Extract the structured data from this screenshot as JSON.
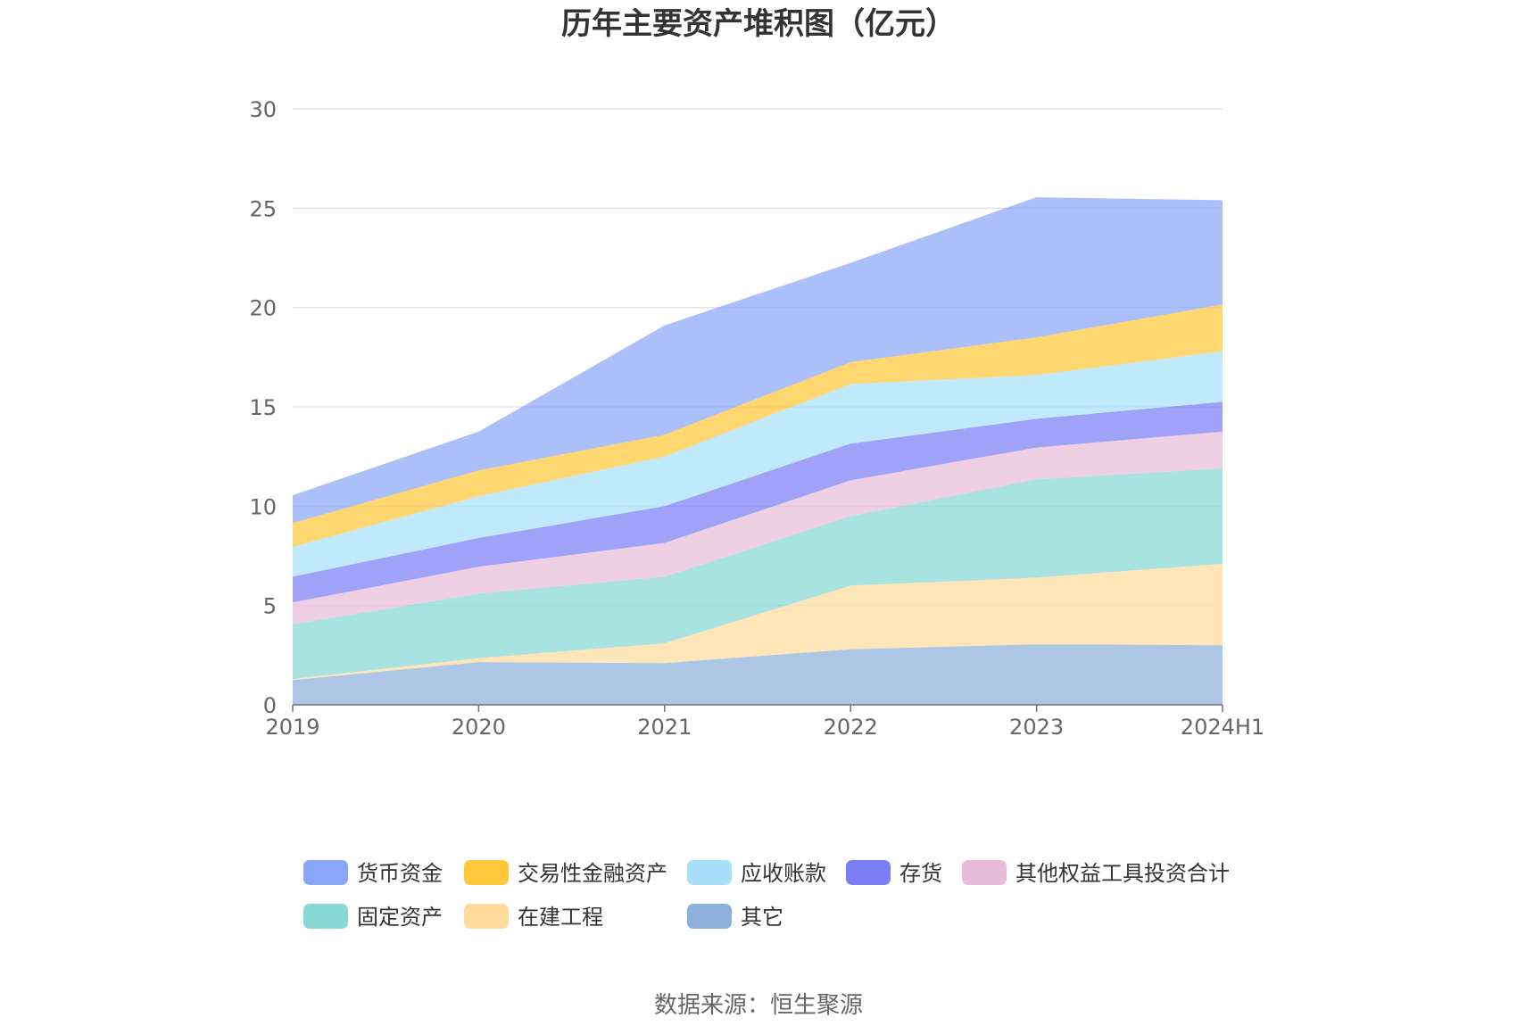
{
  "chart_data": {
    "type": "area",
    "stacked": true,
    "title": "历年主要资产堆积图（亿元）",
    "categories": [
      "2019",
      "2020",
      "2021",
      "2022",
      "2023",
      "2024H1"
    ],
    "ylim": [
      0,
      30
    ],
    "yticks": [
      0,
      5,
      10,
      15,
      20,
      25,
      30
    ],
    "grid": true,
    "legend_position": "bottom",
    "series": [
      {
        "name": "其它",
        "color": "#8eb0dc",
        "values": [
          1.25,
          2.15,
          2.1,
          2.8,
          3.05,
          3.0
        ]
      },
      {
        "name": "在建工程",
        "color": "#ffdc9e",
        "values": [
          0.05,
          0.2,
          1.0,
          3.2,
          3.35,
          4.1
        ]
      },
      {
        "name": "固定资产",
        "color": "#88d8d6",
        "values": [
          2.75,
          3.25,
          3.35,
          3.5,
          4.95,
          4.8
        ]
      },
      {
        "name": "其他权益工具投资合计",
        "color": "#e8bcda",
        "values": [
          1.1,
          1.35,
          1.7,
          1.8,
          1.6,
          1.85
        ]
      },
      {
        "name": "存货",
        "color": "#7b7ef5",
        "values": [
          1.3,
          1.45,
          1.85,
          1.85,
          1.45,
          1.5
        ]
      },
      {
        "name": "应收账款",
        "color": "#a8e0fb",
        "values": [
          1.5,
          2.1,
          2.5,
          3.0,
          2.2,
          2.55
        ]
      },
      {
        "name": "交易性金融资产",
        "color": "#ffc73a",
        "values": [
          1.2,
          1.3,
          1.1,
          1.1,
          1.9,
          2.35
        ]
      },
      {
        "name": "货币资金",
        "color": "#8aa6f8",
        "values": [
          1.4,
          1.95,
          5.5,
          5.0,
          7.05,
          5.25
        ]
      }
    ],
    "legend_order": [
      "货币资金",
      "交易性金融资产",
      "应收账款",
      "存货",
      "其他权益工具投资合计",
      "固定资产",
      "在建工程",
      "其它"
    ]
  },
  "footer": {
    "source": "数据来源：恒生聚源"
  }
}
